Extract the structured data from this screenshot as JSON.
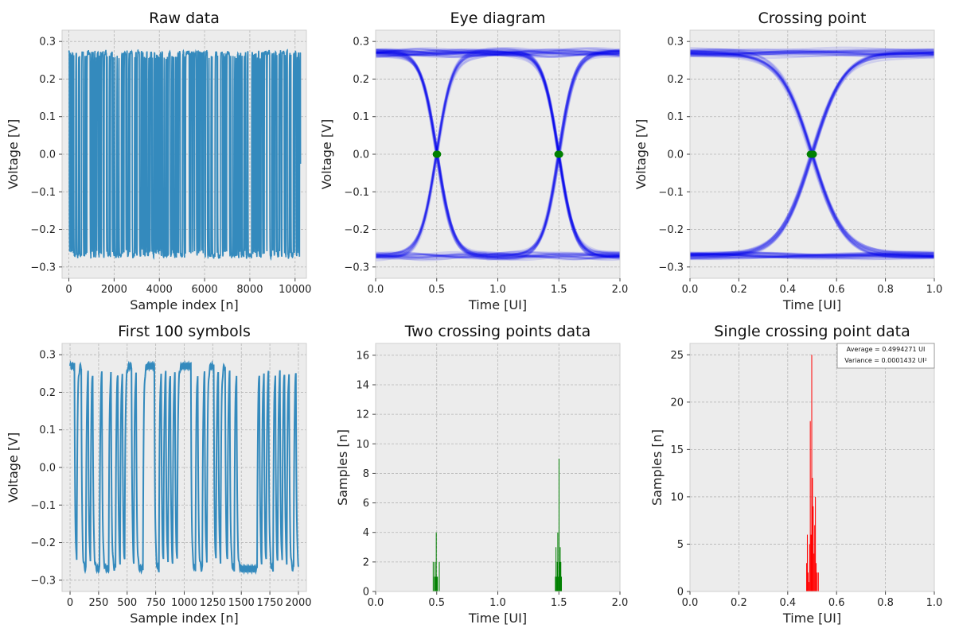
{
  "chart_data": [
    {
      "id": "raw",
      "type": "line",
      "title": "Raw data",
      "xlabel": "Sample index [n]",
      "ylabel": "Voltage [V]",
      "xlim": [
        -300,
        10500
      ],
      "ylim": [
        -0.33,
        0.33
      ],
      "xticks": [
        0,
        2000,
        4000,
        6000,
        8000,
        10000
      ],
      "yticks": [
        -0.3,
        -0.2,
        -0.1,
        0.0,
        0.1,
        0.2,
        0.3
      ],
      "series": [
        {
          "color": "#348abd",
          "samples_per_symbol": 20,
          "x_start": 0,
          "x_end": 10240,
          "levels": [
            0.27,
            -0.27
          ]
        }
      ]
    },
    {
      "id": "eye",
      "type": "line",
      "title": "Eye diagram",
      "xlabel": "Time [UI]",
      "ylabel": "Voltage [V]",
      "xlim": [
        0.0,
        2.0
      ],
      "ylim": [
        -0.33,
        0.33
      ],
      "xticks": [
        0.0,
        0.5,
        1.0,
        1.5,
        2.0
      ],
      "yticks": [
        -0.3,
        -0.2,
        -0.1,
        0.0,
        0.1,
        0.2,
        0.3
      ],
      "series": [
        {
          "color": "#0000ee",
          "crossings_x": [
            0.5,
            1.5
          ],
          "crossing_color": "#008000",
          "levels": [
            0.27,
            -0.27
          ]
        }
      ]
    },
    {
      "id": "crossing",
      "type": "line",
      "title": "Crossing point",
      "xlabel": "Time [UI]",
      "ylabel": "Voltage [V]",
      "xlim": [
        0.0,
        1.0
      ],
      "ylim": [
        -0.33,
        0.33
      ],
      "xticks": [
        0.0,
        0.2,
        0.4,
        0.6,
        0.8,
        1.0
      ],
      "yticks": [
        -0.3,
        -0.2,
        -0.1,
        0.0,
        0.1,
        0.2,
        0.3
      ],
      "series": [
        {
          "color": "#0000ee",
          "crossings_x": [
            0.5
          ],
          "crossing_color": "#008000",
          "levels": [
            0.27,
            -0.27
          ]
        }
      ]
    },
    {
      "id": "first100",
      "type": "line",
      "title": "First 100 symbols",
      "xlabel": "Sample index [n]",
      "ylabel": "Voltage [V]",
      "xlim": [
        -70,
        2070
      ],
      "ylim": [
        -0.33,
        0.33
      ],
      "xticks": [
        0,
        250,
        500,
        750,
        1000,
        1250,
        1500,
        1750,
        2000
      ],
      "yticks": [
        -0.3,
        -0.2,
        -0.1,
        0.0,
        0.1,
        0.2,
        0.3
      ],
      "series": [
        {
          "color": "#348abd",
          "bits": [
            1,
            1,
            0,
            1,
            1,
            0,
            0,
            1,
            0,
            1,
            0,
            0,
            0,
            1,
            0,
            0,
            0,
            1,
            0,
            0,
            1,
            0,
            1,
            0,
            1,
            1,
            1,
            0,
            1,
            0,
            0,
            0,
            1,
            1,
            1,
            1,
            1,
            0,
            0,
            1,
            0,
            1,
            0,
            1,
            0,
            1,
            0,
            1,
            1,
            1,
            1,
            1,
            1,
            0,
            0,
            1,
            0,
            0,
            1,
            0,
            1,
            1,
            1,
            0,
            1,
            0,
            1,
            1,
            0,
            1,
            0,
            0,
            1,
            0,
            0,
            0,
            0,
            0,
            0,
            0,
            0,
            0,
            1,
            0,
            1,
            0,
            1,
            0,
            0,
            1,
            0,
            1,
            0,
            1,
            0,
            1,
            0,
            0,
            1,
            0
          ],
          "samples_per_symbol": 20,
          "levels": [
            0.27,
            -0.27
          ]
        }
      ]
    },
    {
      "id": "two_hist",
      "type": "bar",
      "title": "Two crossing points data",
      "xlabel": "Time [UI]",
      "ylabel": "Samples [n]",
      "xlim": [
        0.0,
        2.0
      ],
      "ylim": [
        0,
        16.8
      ],
      "xticks": [
        0.0,
        0.5,
        1.0,
        1.5,
        2.0
      ],
      "yticks": [
        0,
        2,
        4,
        6,
        8,
        10,
        12,
        14,
        16
      ],
      "bar_width": 0.004,
      "series": [
        {
          "color": "#008000",
          "bars": [
            [
              0.47,
              2
            ],
            [
              0.48,
              1
            ],
            [
              0.485,
              2
            ],
            [
              0.49,
              1
            ],
            [
              0.495,
              4
            ],
            [
              0.5,
              1
            ],
            [
              0.505,
              1
            ],
            [
              0.52,
              2
            ],
            [
              1.47,
              1
            ],
            [
              1.475,
              3
            ],
            [
              1.48,
              1
            ],
            [
              1.485,
              2
            ],
            [
              1.49,
              4
            ],
            [
              1.495,
              1
            ],
            [
              1.5,
              9
            ],
            [
              1.505,
              2
            ],
            [
              1.51,
              3
            ],
            [
              1.515,
              2
            ],
            [
              1.52,
              1
            ]
          ]
        }
      ]
    },
    {
      "id": "single_hist",
      "type": "bar",
      "title": "Single crossing point data",
      "xlabel": "Time [UI]",
      "ylabel": "Samples [n]",
      "xlim": [
        0.0,
        1.0
      ],
      "ylim": [
        0,
        26.2
      ],
      "xticks": [
        0.0,
        0.2,
        0.4,
        0.6,
        0.8,
        1.0
      ],
      "yticks": [
        0,
        5,
        10,
        15,
        20,
        25
      ],
      "bar_width": 0.0025,
      "legend": [
        "Average = 0.4994271 UI",
        "Variance = 0.0001432 UI²"
      ],
      "legend_position": "upper right",
      "series": [
        {
          "color": "#ff0000",
          "bars": [
            [
              0.477,
              3
            ],
            [
              0.48,
              6
            ],
            [
              0.483,
              2
            ],
            [
              0.486,
              1
            ],
            [
              0.489,
              5
            ],
            [
              0.492,
              18
            ],
            [
              0.495,
              6
            ],
            [
              0.498,
              25
            ],
            [
              0.501,
              12
            ],
            [
              0.504,
              9
            ],
            [
              0.507,
              4
            ],
            [
              0.51,
              7
            ],
            [
              0.513,
              10
            ],
            [
              0.516,
              3
            ],
            [
              0.52,
              2
            ],
            [
              0.525,
              2
            ]
          ]
        }
      ]
    }
  ]
}
